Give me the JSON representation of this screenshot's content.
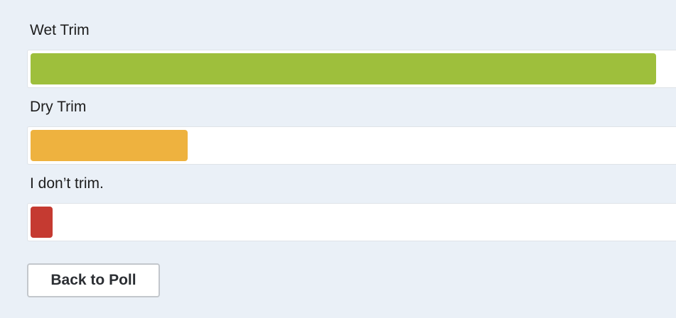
{
  "poll": {
    "options": [
      {
        "label": "Wet Trim",
        "percent": 77.8,
        "color": "#9ebf3c"
      },
      {
        "label": "Dry Trim",
        "percent": 19.5,
        "color": "#eeb23f"
      },
      {
        "label": "I don’t trim.",
        "percent": 2.7,
        "color": "#c53a31"
      }
    ]
  },
  "back_button": {
    "label": "Back to Poll"
  }
}
